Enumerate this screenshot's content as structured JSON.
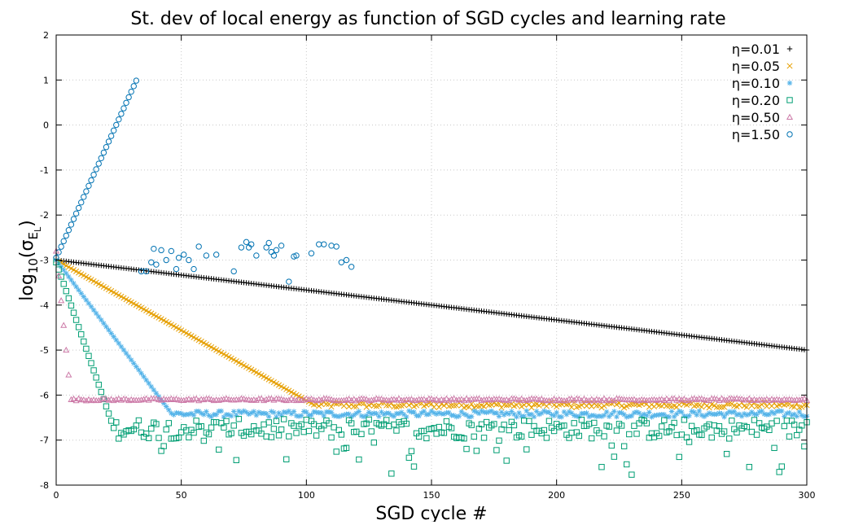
{
  "chart_data": {
    "type": "scatter",
    "title": "St. dev of local energy as function of SGD cycles and learning rate",
    "xlabel": "SGD cycle #",
    "ylabel_parts": {
      "main": "log",
      "sub": "10",
      "open": "(σ",
      "sub2": "E",
      "sub3": "L",
      "close": ")"
    },
    "xlim": [
      0,
      300
    ],
    "ylim": [
      -8,
      2
    ],
    "xticks": [
      0,
      50,
      100,
      150,
      200,
      250,
      300
    ],
    "yticks": [
      -8,
      -7,
      -6,
      -5,
      -4,
      -3,
      -2,
      -1,
      0,
      1,
      2
    ],
    "grid": true,
    "legend_position": "top-right",
    "series": [
      {
        "name": "η=0.01",
        "color": "#000000",
        "marker": "plus",
        "start": -3.0,
        "rate": 0.00666,
        "floor": null,
        "noise": 0.0,
        "x_max": 300
      },
      {
        "name": "η=0.05",
        "color": "#e69f00",
        "marker": "cross",
        "start": -3.0,
        "rate": 0.0312,
        "floor": -6.22,
        "noise": 0.06,
        "x_max": 300
      },
      {
        "name": "η=0.10",
        "color": "#56b4e9",
        "marker": "star",
        "start": -3.0,
        "rate": 0.074,
        "floor": -6.42,
        "noise": 0.07,
        "x_max": 300
      },
      {
        "name": "η=0.20",
        "color": "#009e73",
        "marker": "square",
        "start": -3.05,
        "rate": 0.16,
        "floor": -6.75,
        "noise": 0.22,
        "x_max": 300
      },
      {
        "name": "η=0.50",
        "color": "#cc79a7",
        "marker": "triangle",
        "start": -2.8,
        "rate": 0.55,
        "floor": -6.1,
        "noise": 0.025,
        "x_max": 300
      },
      {
        "name": "η=1.50",
        "color": "#0072b2",
        "marker": "circle",
        "start": -2.95,
        "rate": -0.123,
        "floor": null,
        "noise": 0.0,
        "x_max": 32,
        "scatter_points": [
          [
            34,
            -3.25
          ],
          [
            36,
            -3.25
          ],
          [
            38,
            -3.05
          ],
          [
            39,
            -2.75
          ],
          [
            40,
            -3.1
          ],
          [
            42,
            -2.78
          ],
          [
            44,
            -3.0
          ],
          [
            46,
            -2.8
          ],
          [
            48,
            -3.2
          ],
          [
            49,
            -2.95
          ],
          [
            51,
            -2.88
          ],
          [
            53,
            -3.0
          ],
          [
            55,
            -3.2
          ],
          [
            57,
            -2.7
          ],
          [
            60,
            -2.9
          ],
          [
            64,
            -2.88
          ],
          [
            71,
            -3.25
          ],
          [
            74,
            -2.72
          ],
          [
            76,
            -2.6
          ],
          [
            77,
            -2.72
          ],
          [
            78,
            -2.65
          ],
          [
            80,
            -2.9
          ],
          [
            84,
            -2.72
          ],
          [
            85,
            -2.62
          ],
          [
            86,
            -2.82
          ],
          [
            87,
            -2.9
          ],
          [
            88,
            -2.78
          ],
          [
            90,
            -2.68
          ],
          [
            93,
            -3.48
          ],
          [
            95,
            -2.92
          ],
          [
            96,
            -2.9
          ],
          [
            102,
            -2.85
          ],
          [
            105,
            -2.65
          ],
          [
            107,
            -2.65
          ],
          [
            110,
            -2.68
          ],
          [
            112,
            -2.7
          ],
          [
            114,
            -3.05
          ],
          [
            116,
            -3.0
          ],
          [
            118,
            -3.15
          ]
        ]
      }
    ]
  }
}
